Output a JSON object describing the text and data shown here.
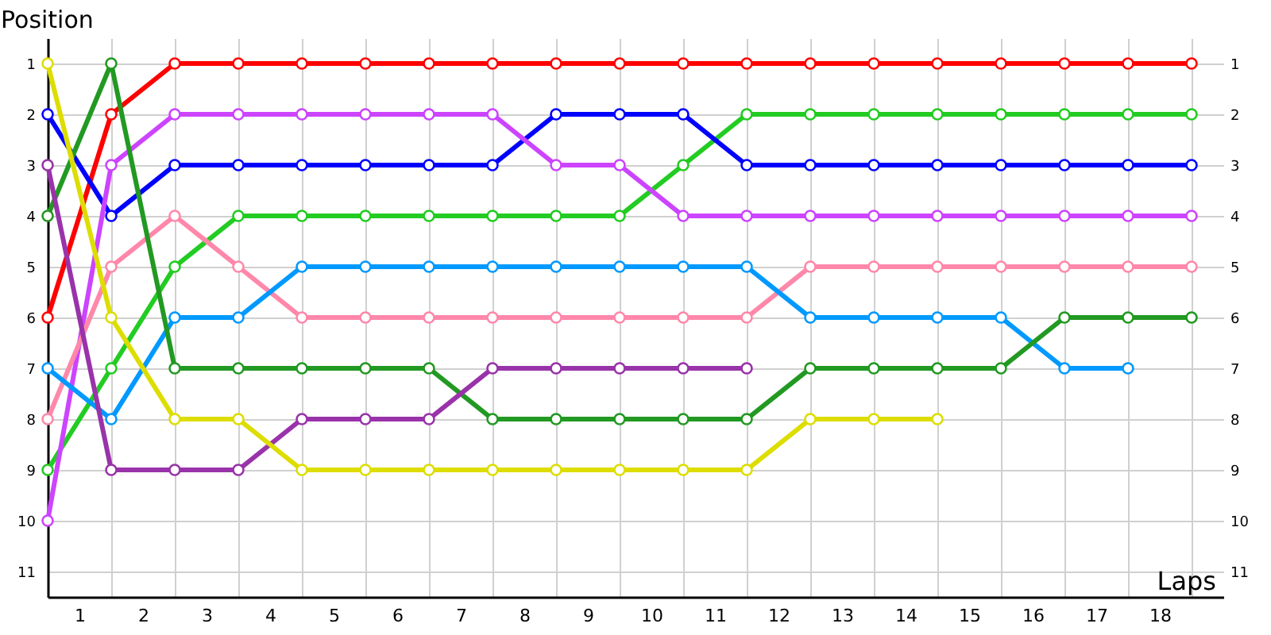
{
  "chart_data": {
    "type": "line",
    "xlabel": "Laps",
    "ylabel": "Position",
    "x": [
      0,
      1,
      2,
      3,
      4,
      5,
      6,
      7,
      8,
      9,
      10,
      11,
      12,
      13,
      14,
      15,
      16,
      17,
      18
    ],
    "xlim": [
      0,
      18.5
    ],
    "xticks": [
      {
        "value": 0.5,
        "label": "1"
      },
      {
        "value": 1.5,
        "label": "2"
      },
      {
        "value": 2.5,
        "label": "3"
      },
      {
        "value": 3.5,
        "label": "4"
      },
      {
        "value": 4.5,
        "label": "5"
      },
      {
        "value": 5.5,
        "label": "6"
      },
      {
        "value": 6.5,
        "label": "7"
      },
      {
        "value": 7.5,
        "label": "8"
      },
      {
        "value": 8.5,
        "label": "9"
      },
      {
        "value": 9.5,
        "label": "10"
      },
      {
        "value": 10.5,
        "label": "11"
      },
      {
        "value": 11.5,
        "label": "12"
      },
      {
        "value": 12.5,
        "label": "13"
      },
      {
        "value": 13.5,
        "label": "14"
      },
      {
        "value": 14.5,
        "label": "15"
      },
      {
        "value": 15.5,
        "label": "16"
      },
      {
        "value": 16.5,
        "label": "17"
      },
      {
        "value": 17.5,
        "label": "18"
      }
    ],
    "ylim": [
      11.5,
      0.5
    ],
    "yticks": [
      1,
      2,
      3,
      4,
      5,
      6,
      7,
      8,
      9,
      10,
      11
    ],
    "y2lim": [
      11.5,
      0.5
    ],
    "y2ticks": [
      1,
      2,
      3,
      4,
      5,
      6,
      7,
      8,
      9,
      10,
      11
    ],
    "grid": true,
    "marker": "circle",
    "line_style": "solid",
    "series": [
      {
        "color": "#ff0000",
        "values": [
          6,
          2,
          1,
          1,
          1,
          1,
          1,
          1,
          1,
          1,
          1,
          1,
          1,
          1,
          1,
          1,
          1,
          1,
          1
        ]
      },
      {
        "color": "#22cc22",
        "values": [
          9,
          7,
          5,
          4,
          4,
          4,
          4,
          4,
          4,
          4,
          3,
          2,
          2,
          2,
          2,
          2,
          2,
          2,
          2
        ]
      },
      {
        "color": "#0000ff",
        "values": [
          2,
          4,
          3,
          3,
          3,
          3,
          3,
          3,
          2,
          2,
          2,
          3,
          3,
          3,
          3,
          3,
          3,
          3,
          3
        ]
      },
      {
        "color": "#cc44ff",
        "values": [
          10,
          3,
          2,
          2,
          2,
          2,
          2,
          2,
          3,
          3,
          4,
          4,
          4,
          4,
          4,
          4,
          4,
          4,
          4
        ]
      },
      {
        "color": "#ff88aa",
        "values": [
          8,
          5,
          4,
          5,
          6,
          6,
          6,
          6,
          6,
          6,
          6,
          6,
          5,
          5,
          5,
          5,
          5,
          5,
          5
        ]
      },
      {
        "color": "#0099ff",
        "values": [
          7,
          8,
          6,
          6,
          5,
          5,
          5,
          5,
          5,
          5,
          5,
          5,
          6,
          6,
          6,
          6,
          7,
          7,
          null
        ]
      },
      {
        "color": "#229922",
        "values": [
          4,
          1,
          7,
          7,
          7,
          7,
          7,
          8,
          8,
          8,
          8,
          8,
          7,
          7,
          7,
          7,
          6,
          6,
          6
        ]
      },
      {
        "color": "#9933aa",
        "values": [
          3,
          9,
          9,
          9,
          8,
          8,
          8,
          7,
          7,
          7,
          7,
          7,
          null,
          null,
          null,
          null,
          null,
          null,
          null
        ]
      },
      {
        "color": "#dddd00",
        "values": [
          1,
          6,
          8,
          8,
          9,
          9,
          9,
          9,
          9,
          9,
          9,
          9,
          8,
          8,
          8,
          null,
          null,
          null,
          null
        ]
      }
    ]
  }
}
